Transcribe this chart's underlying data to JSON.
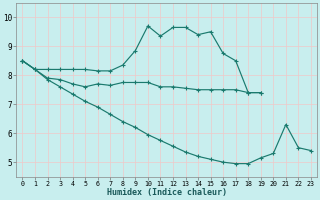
{
  "xlabel": "Humidex (Indice chaleur)",
  "bg_color": "#c8eeee",
  "grid_color": "#d8f0f0",
  "line_color": "#1a7a6e",
  "xlim": [
    -0.5,
    23.5
  ],
  "ylim": [
    4.5,
    10.5
  ],
  "xticks": [
    0,
    1,
    2,
    3,
    4,
    5,
    6,
    7,
    8,
    9,
    10,
    11,
    12,
    13,
    14,
    15,
    16,
    17,
    18,
    19,
    20,
    21,
    22,
    23
  ],
  "yticks": [
    5,
    6,
    7,
    8,
    9,
    10
  ],
  "lines": [
    {
      "x": [
        0,
        1,
        2,
        3,
        4,
        5,
        6,
        7,
        8,
        9,
        10,
        11,
        12,
        13,
        14,
        15,
        16,
        17,
        18,
        19
      ],
      "y": [
        8.5,
        8.2,
        8.2,
        8.2,
        8.2,
        8.2,
        8.15,
        8.15,
        8.35,
        8.85,
        9.7,
        9.35,
        9.65,
        9.65,
        9.4,
        9.5,
        8.75,
        8.5,
        7.4,
        7.4
      ]
    },
    {
      "x": [
        0,
        1,
        2,
        3,
        4,
        5,
        6,
        7,
        8,
        9,
        10,
        11,
        12,
        13,
        14,
        15,
        16,
        17,
        18,
        19
      ],
      "y": [
        8.5,
        8.2,
        7.9,
        7.85,
        7.7,
        7.6,
        7.7,
        7.65,
        7.75,
        7.75,
        7.75,
        7.6,
        7.6,
        7.55,
        7.5,
        7.5,
        7.5,
        7.5,
        7.4,
        7.4
      ]
    },
    {
      "x": [
        0,
        1,
        2,
        3,
        4,
        5,
        6,
        7,
        8,
        9,
        10,
        11,
        12,
        13,
        14,
        15,
        16,
        17,
        18,
        19,
        20,
        21,
        22,
        23
      ],
      "y": [
        8.5,
        8.2,
        7.85,
        7.6,
        7.35,
        7.1,
        6.9,
        6.65,
        6.4,
        6.2,
        5.95,
        5.75,
        5.55,
        5.35,
        5.2,
        5.1,
        5.0,
        4.95,
        4.95,
        5.15,
        5.3,
        6.3,
        5.5,
        5.4
      ]
    }
  ]
}
